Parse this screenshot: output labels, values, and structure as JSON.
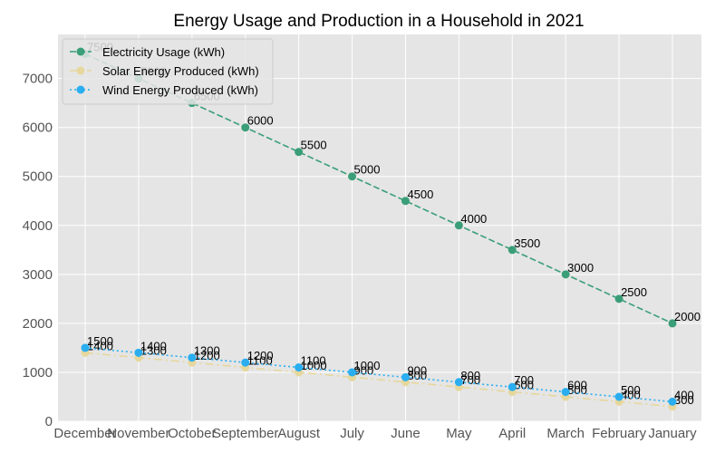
{
  "chart_data": {
    "type": "line",
    "title": "Energy Usage and Production in a Household in 2021",
    "xlabel": "",
    "ylabel": "",
    "categories": [
      "December",
      "November",
      "October",
      "September",
      "August",
      "July",
      "June",
      "May",
      "April",
      "March",
      "February",
      "January"
    ],
    "ylim": [
      0,
      7900
    ],
    "yticks": [
      0,
      1000,
      2000,
      3000,
      4000,
      5000,
      6000,
      7000
    ],
    "grid": true,
    "legend_position": "top-left",
    "series": [
      {
        "name": "Electricity Usage (kWh)",
        "values": [
          7500,
          7000,
          6500,
          6000,
          5500,
          5000,
          4500,
          4000,
          3500,
          3000,
          2500,
          2000
        ],
        "color": "#3a9e78",
        "dash": "dashed",
        "marker": "circle"
      },
      {
        "name": "Solar Energy Produced (kWh)",
        "values": [
          1400,
          1300,
          1200,
          1100,
          1000,
          900,
          800,
          700,
          600,
          500,
          400,
          300
        ],
        "color": "#e6d79c",
        "dash": "dashdot",
        "marker": "circle"
      },
      {
        "name": "Wind Energy Produced (kWh)",
        "values": [
          1500,
          1400,
          1300,
          1200,
          1100,
          1000,
          900,
          800,
          700,
          600,
          500,
          400
        ],
        "color": "#2aaef0",
        "dash": "dotted",
        "marker": "circle"
      }
    ]
  }
}
